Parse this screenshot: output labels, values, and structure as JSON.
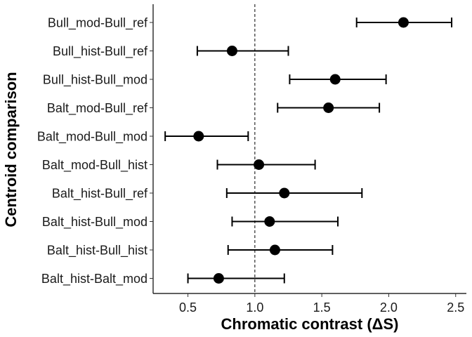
{
  "chart_data": {
    "type": "scatter",
    "xlabel": "Chromatic contrast (ΔS)",
    "ylabel": "Centroid comparison",
    "xlim": [
      0.24,
      2.58
    ],
    "x_ticks": [
      0.5,
      1.0,
      1.5,
      2.0,
      2.5
    ],
    "x_tick_labels": [
      "0.5",
      "1.0",
      "1.5",
      "2.0",
      "2.5"
    ],
    "reference_line": {
      "x": 1.0,
      "style": "dashed"
    },
    "grid": false,
    "marker_color": "#000000",
    "points": [
      {
        "label": "Bull_mod-Bull_ref",
        "value": 2.11,
        "lower": 1.76,
        "upper": 2.47
      },
      {
        "label": "Bull_hist-Bull_ref",
        "value": 0.83,
        "lower": 0.57,
        "upper": 1.25
      },
      {
        "label": "Bull_hist-Bull_mod",
        "value": 1.6,
        "lower": 1.26,
        "upper": 1.98
      },
      {
        "label": "Balt_mod-Bull_ref",
        "value": 1.55,
        "lower": 1.17,
        "upper": 1.93
      },
      {
        "label": "Balt_mod-Bull_mod",
        "value": 0.58,
        "lower": 0.33,
        "upper": 0.95
      },
      {
        "label": "Balt_mod-Bull_hist",
        "value": 1.03,
        "lower": 0.72,
        "upper": 1.45
      },
      {
        "label": "Balt_hist-Bull_ref",
        "value": 1.22,
        "lower": 0.79,
        "upper": 1.8
      },
      {
        "label": "Balt_hist-Bull_mod",
        "value": 1.11,
        "lower": 0.83,
        "upper": 1.62
      },
      {
        "label": "Balt_hist-Bull_hist",
        "value": 1.15,
        "lower": 0.8,
        "upper": 1.58
      },
      {
        "label": "Balt_hist-Balt_mod",
        "value": 0.73,
        "lower": 0.5,
        "upper": 1.22
      }
    ]
  }
}
